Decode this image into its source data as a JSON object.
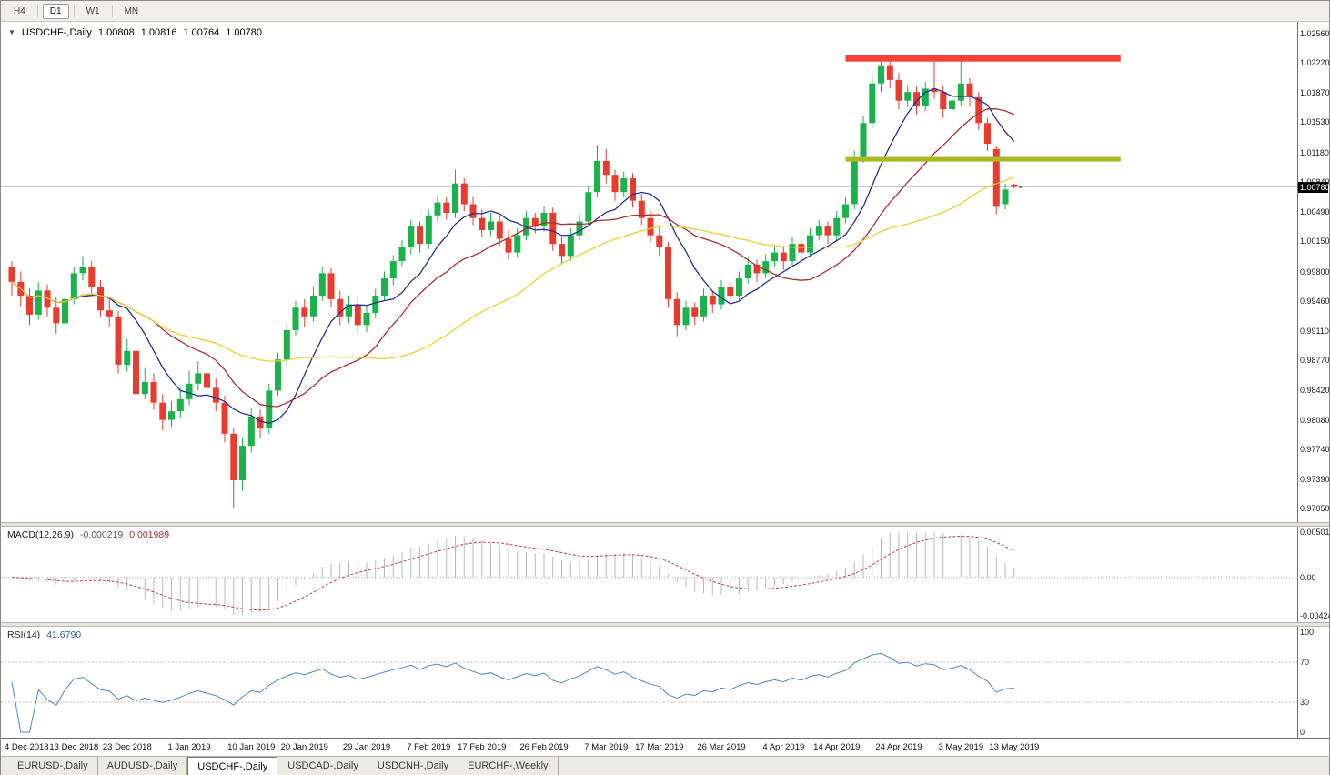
{
  "toolbar": {
    "timeframes": [
      {
        "label": "H4",
        "active": false
      },
      {
        "label": "D1",
        "active": true
      },
      {
        "label": "W1",
        "active": false
      },
      {
        "label": "MN",
        "active": false
      }
    ]
  },
  "chart": {
    "title": "USDCHF-,Daily",
    "open": "1.00808",
    "high": "1.00816",
    "low": "1.00764",
    "close": "1.00780"
  },
  "chart_data": {
    "type": "candlestick",
    "symbol": "USDCHF-",
    "timeframe": "Daily",
    "colors": {
      "up": "#19b24b",
      "down": "#ea3b2e",
      "ma_fast": "#20308f",
      "ma_mid": "#aa2e2e",
      "ma_slow": "#f0cf2a",
      "resistance": "#f74138",
      "support": "#a9b821",
      "macd_histogram": "#b8b8b8",
      "macd_signal": "#c03a3a",
      "rsi_line": "#4a86c8",
      "bid_line": "#c9c9c9"
    },
    "bid": {
      "price": 1.0078,
      "label": "1.00780"
    },
    "price_axis_labels": [
      "1.02560",
      "1.02220",
      "1.01870",
      "1.01530",
      "1.01180",
      "1.00840",
      "1.00490",
      "1.00150",
      "0.99800",
      "0.99460",
      "0.99110",
      "0.98770",
      "0.98420",
      "0.98080",
      "0.97740",
      "0.97390",
      "0.97050"
    ],
    "x_axis_labels": [
      {
        "label": "4 Dec 2018",
        "index": 0
      },
      {
        "label": "13 Dec 2018",
        "index": 7
      },
      {
        "label": "23 Dec 2018",
        "index": 13
      },
      {
        "label": "1 Jan 2019",
        "index": 20
      },
      {
        "label": "10 Jan 2019",
        "index": 27
      },
      {
        "label": "20 Jan 2019",
        "index": 33
      },
      {
        "label": "29 Jan 2019",
        "index": 40
      },
      {
        "label": "7 Feb 2019",
        "index": 47
      },
      {
        "label": "17 Feb 2019",
        "index": 53
      },
      {
        "label": "26 Feb 2019",
        "index": 60
      },
      {
        "label": "7 Mar 2019",
        "index": 67
      },
      {
        "label": "17 Mar 2019",
        "index": 73
      },
      {
        "label": "26 Mar 2019",
        "index": 80
      },
      {
        "label": "4 Apr 2019",
        "index": 87
      },
      {
        "label": "14 Apr 2019",
        "index": 93
      },
      {
        "label": "24 Apr 2019",
        "index": 100
      },
      {
        "label": "3 May 2019",
        "index": 107
      },
      {
        "label": "13 May 2019",
        "index": 113
      }
    ],
    "moving_averages": [
      {
        "period": 8,
        "color_key": "ma_fast"
      },
      {
        "period": 17,
        "color_key": "ma_mid"
      },
      {
        "period": 34,
        "color_key": "ma_slow"
      }
    ],
    "hlines": [
      {
        "name": "resistance",
        "price": 1.0227,
        "from_index": 94,
        "to_index": 125,
        "color": "#f74138",
        "thickness": 7
      },
      {
        "name": "support",
        "price": 1.011,
        "from_index": 94,
        "to_index": 125,
        "color": "#a9b821",
        "thickness": 5
      }
    ],
    "candles": [
      [
        0.9985,
        0.9992,
        0.9952,
        0.9968
      ],
      [
        0.9968,
        0.998,
        0.994,
        0.9952
      ],
      [
        0.9952,
        0.996,
        0.9918,
        0.993
      ],
      [
        0.993,
        0.9968,
        0.9924,
        0.9958
      ],
      [
        0.9958,
        0.9965,
        0.9928,
        0.9938
      ],
      [
        0.9938,
        0.995,
        0.9908,
        0.992
      ],
      [
        0.992,
        0.9955,
        0.9914,
        0.9948
      ],
      [
        0.9948,
        0.9986,
        0.9942,
        0.9978
      ],
      [
        0.9978,
        0.9998,
        0.997,
        0.9985
      ],
      [
        0.9985,
        0.9992,
        0.9952,
        0.9962
      ],
      [
        0.9962,
        0.997,
        0.9928,
        0.9935
      ],
      [
        0.9935,
        0.995,
        0.9916,
        0.9928
      ],
      [
        0.9928,
        0.9934,
        0.9862,
        0.9872
      ],
      [
        0.9872,
        0.9902,
        0.9864,
        0.9888
      ],
      [
        0.9888,
        0.9893,
        0.9828,
        0.9838
      ],
      [
        0.9838,
        0.9868,
        0.9832,
        0.9852
      ],
      [
        0.9852,
        0.9862,
        0.982,
        0.9828
      ],
      [
        0.9828,
        0.9838,
        0.9796,
        0.9808
      ],
      [
        0.9808,
        0.983,
        0.98,
        0.9818
      ],
      [
        0.9818,
        0.9845,
        0.981,
        0.9832
      ],
      [
        0.9832,
        0.9865,
        0.9825,
        0.985
      ],
      [
        0.985,
        0.9876,
        0.9842,
        0.9862
      ],
      [
        0.9862,
        0.987,
        0.9836,
        0.9845
      ],
      [
        0.9845,
        0.9856,
        0.9818,
        0.9828
      ],
      [
        0.9828,
        0.9836,
        0.9782,
        0.9792
      ],
      [
        0.9792,
        0.9798,
        0.9706,
        0.9738
      ],
      [
        0.9738,
        0.9788,
        0.9726,
        0.9778
      ],
      [
        0.9778,
        0.9822,
        0.977,
        0.9812
      ],
      [
        0.9812,
        0.982,
        0.9786,
        0.9798
      ],
      [
        0.9798,
        0.985,
        0.9792,
        0.9842
      ],
      [
        0.9842,
        0.9886,
        0.9836,
        0.9878
      ],
      [
        0.9878,
        0.992,
        0.987,
        0.9912
      ],
      [
        0.9912,
        0.9946,
        0.9906,
        0.9938
      ],
      [
        0.9938,
        0.9948,
        0.9916,
        0.9928
      ],
      [
        0.9928,
        0.9962,
        0.9922,
        0.9952
      ],
      [
        0.9952,
        0.9986,
        0.9946,
        0.9978
      ],
      [
        0.9978,
        0.9984,
        0.9938,
        0.9948
      ],
      [
        0.9948,
        0.9958,
        0.9918,
        0.9928
      ],
      [
        0.9928,
        0.9952,
        0.992,
        0.9942
      ],
      [
        0.9942,
        0.995,
        0.9908,
        0.9918
      ],
      [
        0.9918,
        0.994,
        0.991,
        0.9932
      ],
      [
        0.9932,
        0.996,
        0.9926,
        0.9952
      ],
      [
        0.9952,
        0.998,
        0.9946,
        0.9972
      ],
      [
        0.9972,
        0.9999,
        0.9964,
        0.9992
      ],
      [
        0.9992,
        1.0016,
        0.9986,
        1.0008
      ],
      [
        1.0008,
        1.004,
        1.0,
        1.0032
      ],
      [
        1.0032,
        1.0038,
        1.0002,
        1.0012
      ],
      [
        1.0012,
        1.0052,
        1.0006,
        1.0045
      ],
      [
        1.0045,
        1.0068,
        1.0038,
        1.006
      ],
      [
        1.006,
        1.0066,
        1.004,
        1.0048
      ],
      [
        1.0048,
        1.0098,
        1.0042,
        1.0082
      ],
      [
        1.0082,
        1.0088,
        1.005,
        1.0058
      ],
      [
        1.0058,
        1.0066,
        1.0034,
        1.0042
      ],
      [
        1.0042,
        1.0052,
        1.002,
        1.0028
      ],
      [
        1.0028,
        1.0048,
        1.0022,
        1.0038
      ],
      [
        1.0038,
        1.0044,
        1.001,
        1.0018
      ],
      [
        1.0018,
        1.0028,
        0.9994,
        1.0002
      ],
      [
        1.0002,
        1.003,
        0.9996,
        1.0022
      ],
      [
        1.0022,
        1.005,
        1.0016,
        1.0042
      ],
      [
        1.0042,
        1.0048,
        1.0024,
        1.0032
      ],
      [
        1.0032,
        1.0056,
        1.0026,
        1.0048
      ],
      [
        1.0048,
        1.0054,
        1.0004,
        1.0012
      ],
      [
        1.0012,
        1.002,
        0.9988,
        0.9998
      ],
      [
        0.9998,
        1.003,
        0.9992,
        1.0022
      ],
      [
        1.0022,
        1.0046,
        1.0016,
        1.0038
      ],
      [
        1.0038,
        1.008,
        1.0032,
        1.0072
      ],
      [
        1.0072,
        1.0127,
        1.0066,
        1.0108
      ],
      [
        1.0108,
        1.0122,
        1.0082,
        1.0092
      ],
      [
        1.0092,
        1.0098,
        1.0062,
        1.0072
      ],
      [
        1.0072,
        1.0096,
        1.0066,
        1.0088
      ],
      [
        1.0088,
        1.0094,
        1.0054,
        1.0062
      ],
      [
        1.0062,
        1.007,
        1.0034,
        1.0042
      ],
      [
        1.0042,
        1.005,
        1.0014,
        1.0022
      ],
      [
        1.0022,
        1.0032,
        0.9998,
        1.0008
      ],
      [
        1.0008,
        1.0014,
        0.9938,
        0.9948
      ],
      [
        0.9948,
        0.9956,
        0.9905,
        0.9918
      ],
      [
        0.9918,
        0.9946,
        0.9912,
        0.9938
      ],
      [
        0.9938,
        0.9944,
        0.9918,
        0.9928
      ],
      [
        0.9928,
        0.996,
        0.9922,
        0.9952
      ],
      [
        0.9952,
        0.9958,
        0.9932,
        0.9942
      ],
      [
        0.9942,
        0.997,
        0.9936,
        0.9962
      ],
      [
        0.9962,
        0.9968,
        0.9942,
        0.9952
      ],
      [
        0.9952,
        0.998,
        0.9946,
        0.9972
      ],
      [
        0.9972,
        0.9996,
        0.9966,
        0.9988
      ],
      [
        0.9988,
        0.9994,
        0.9968,
        0.9978
      ],
      [
        0.9978,
        1.0,
        0.9972,
        0.9992
      ],
      [
        0.9992,
        1.001,
        0.9986,
        1.0002
      ],
      [
        1.0002,
        1.0008,
        0.9982,
        0.9992
      ],
      [
        0.9992,
        1.002,
        0.9986,
        1.0012
      ],
      [
        1.0012,
        1.0018,
        0.9992,
        1.0002
      ],
      [
        1.0002,
        1.003,
        0.9996,
        1.0022
      ],
      [
        1.0022,
        1.004,
        1.0016,
        1.0032
      ],
      [
        1.0032,
        1.0038,
        1.0012,
        1.0022
      ],
      [
        1.0022,
        1.005,
        1.0016,
        1.0042
      ],
      [
        1.0042,
        1.0066,
        1.0036,
        1.0058
      ],
      [
        1.0058,
        1.012,
        1.0052,
        1.0112
      ],
      [
        1.0112,
        1.016,
        1.0106,
        1.0152
      ],
      [
        1.0152,
        1.0208,
        1.0146,
        1.0198
      ],
      [
        1.0198,
        1.0231,
        1.0188,
        1.0218
      ],
      [
        1.0218,
        1.0226,
        1.0192,
        1.0202
      ],
      [
        1.0202,
        1.021,
        1.0168,
        1.0178
      ],
      [
        1.0178,
        1.0196,
        1.017,
        1.0188
      ],
      [
        1.0188,
        1.0194,
        1.0162,
        1.0172
      ],
      [
        1.0172,
        1.02,
        1.0166,
        1.0192
      ],
      [
        1.0192,
        1.0224,
        1.018,
        1.0188
      ],
      [
        1.0188,
        1.0196,
        1.0158,
        1.0168
      ],
      [
        1.0168,
        1.0186,
        1.016,
        1.0178
      ],
      [
        1.0178,
        1.0226,
        1.0172,
        1.0198
      ],
      [
        1.0198,
        1.0204,
        1.0172,
        1.0182
      ],
      [
        1.0182,
        1.0188,
        1.0144,
        1.0152
      ],
      [
        1.0152,
        1.0158,
        1.012,
        1.0128
      ],
      [
        1.0122,
        1.0126,
        1.0046,
        1.0055
      ],
      [
        1.0058,
        1.0082,
        1.0052,
        1.0075
      ],
      [
        1.00808,
        1.00816,
        1.00764,
        1.0078
      ]
    ],
    "macd": {
      "label": "MACD(12,26,9)",
      "main_value": "-0.000219",
      "signal_value": "0.001989",
      "params": [
        12,
        26,
        9
      ],
      "axis_labels": [
        "0.00501",
        "0.00",
        "-0.00424"
      ],
      "max": 0.00501,
      "min": -0.00424
    },
    "rsi": {
      "label": "RSI(14)",
      "value": "41.6790",
      "period": 14,
      "axis_labels": [
        "100",
        "70",
        "30",
        "0"
      ],
      "levels": [
        70,
        30
      ]
    }
  },
  "tabs": [
    {
      "label": "EURUSD-,Daily",
      "active": false
    },
    {
      "label": "AUDUSD-,Daily",
      "active": false
    },
    {
      "label": "USDCHF-,Daily",
      "active": true
    },
    {
      "label": "USDCAD-,Daily",
      "active": false
    },
    {
      "label": "USDCNH-,Daily",
      "active": false
    },
    {
      "label": "EURCHF-,Weekly",
      "active": false
    }
  ]
}
